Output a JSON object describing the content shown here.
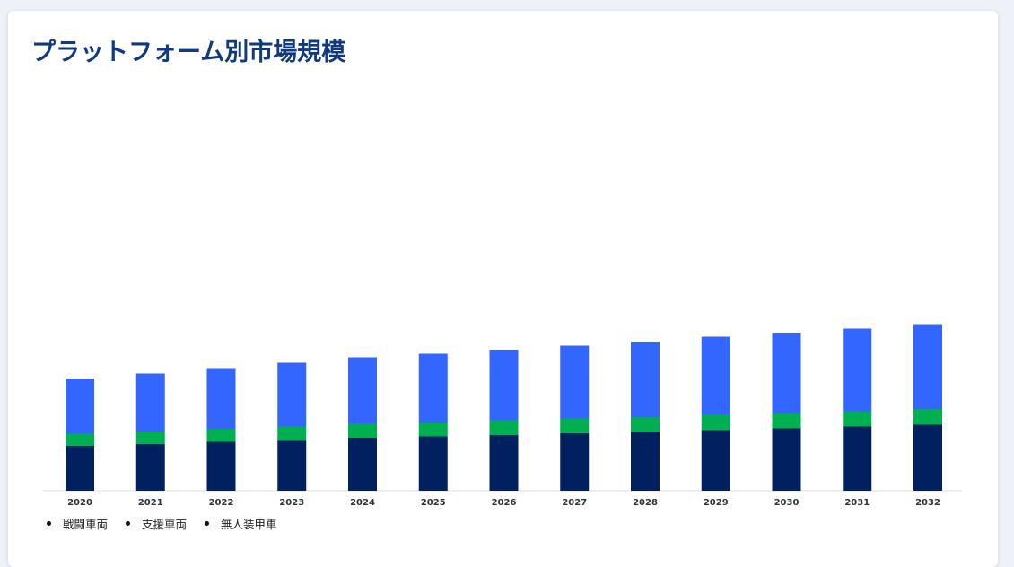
{
  "title": "プラットフォーム別市場規模",
  "colors": {
    "title": "#0f3a82",
    "series": [
      "#002060",
      "#00b050",
      "#3366ff"
    ]
  },
  "chart_data": {
    "type": "bar",
    "stacked": true,
    "title": "",
    "xlabel": "",
    "ylabel": "",
    "y_axis_visible": false,
    "grid": false,
    "legend_position": "bottom-left",
    "categories": [
      "2020",
      "2021",
      "2022",
      "2023",
      "2024",
      "2025",
      "2026",
      "2027",
      "2028",
      "2029",
      "2030",
      "2031",
      "2032"
    ],
    "series": [
      {
        "name": "戦闘車両",
        "color": "#002060",
        "values": [
          100,
          104,
          109,
          113,
          118,
          121,
          124,
          128,
          131,
          135,
          139,
          143,
          147
        ]
      },
      {
        "name": "支援車両",
        "color": "#00b050",
        "values": [
          27,
          28,
          29,
          30,
          31,
          31,
          33,
          33,
          33,
          34,
          34,
          34,
          35
        ]
      },
      {
        "name": "無人装甲車",
        "color": "#3366ff",
        "values": [
          123,
          129,
          135,
          142,
          148,
          153,
          157,
          162,
          168,
          174,
          179,
          184,
          189
        ]
      }
    ],
    "ylim": [
      0,
      400
    ]
  }
}
